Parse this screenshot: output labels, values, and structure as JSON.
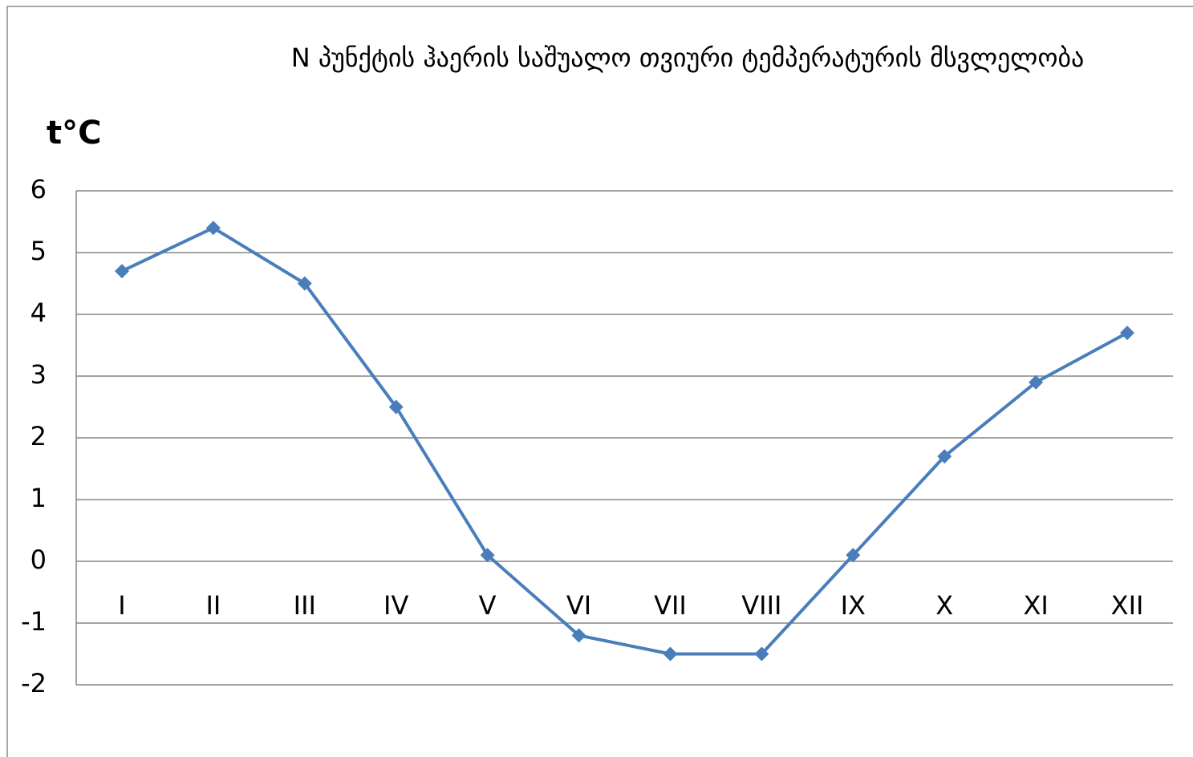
{
  "chart_data": {
    "type": "line",
    "title": "N პუნქტის ჰაერის საშუალო თვიური ტემპერატურის მსვლელობა",
    "y_label": "t°C",
    "categories": [
      "I",
      "II",
      "III",
      "IV",
      "V",
      "VI",
      "VII",
      "VIII",
      "IX",
      "X",
      "XI",
      "XII"
    ],
    "series": [
      {
        "color": "#4a7ebb",
        "values": [
          4.7,
          5.4,
          4.5,
          2.5,
          0.1,
          -1.2,
          -1.5,
          -1.5,
          0.1,
          1.7,
          2.9,
          3.7
        ]
      }
    ],
    "ylim": [
      -2,
      6
    ],
    "yticks": [
      -2,
      -1,
      0,
      1,
      2,
      3,
      4,
      5,
      6
    ],
    "grid": true
  }
}
